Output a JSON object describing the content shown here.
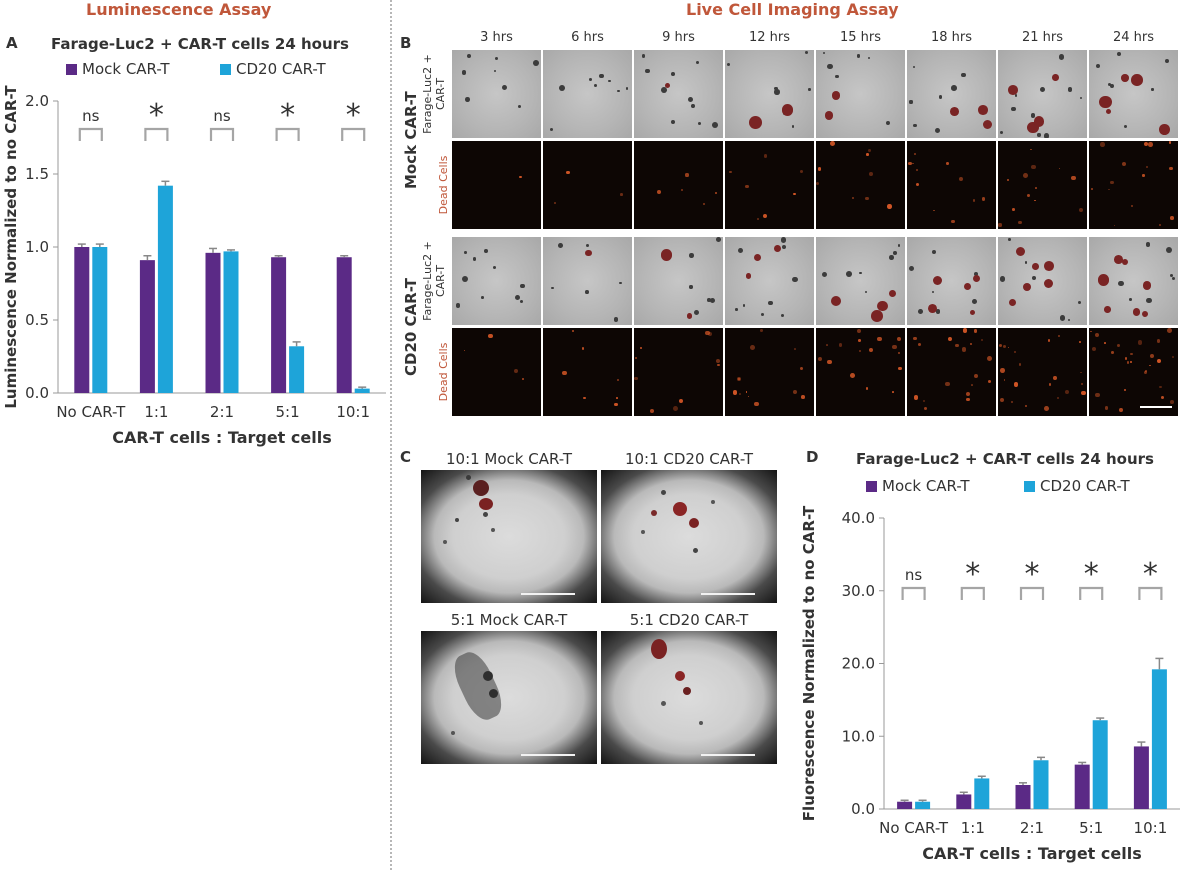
{
  "sections": {
    "left_title": "Luminescence Assay",
    "right_title": "Live Cell Imaging Assay"
  },
  "panel_letters": {
    "a": "A",
    "b": "B",
    "c": "C",
    "d": "D"
  },
  "colors": {
    "mock": "#5b2a86",
    "cd20": "#1ea4d9",
    "accent": "#c0573a",
    "bracket": "#a5a5a5"
  },
  "chart_data": [
    {
      "id": "A",
      "type": "bar",
      "title": "Farage-Luc2 + CAR-T cells 24 hours",
      "xlabel": "CAR-T cells : Target cells",
      "ylabel": "Luminescence Normalized to no CAR-T",
      "categories": [
        "No CAR-T",
        "1:1",
        "2:1",
        "5:1",
        "10:1"
      ],
      "ylim": [
        0,
        2.0
      ],
      "yticks": [
        "0.0",
        "0.5",
        "1.0",
        "1.5",
        "2.0"
      ],
      "legend": "top",
      "series": [
        {
          "name": "Mock CAR-T",
          "values": [
            1.0,
            0.91,
            0.96,
            0.93,
            0.93
          ],
          "errors": [
            0.02,
            0.03,
            0.03,
            0.01,
            0.01
          ]
        },
        {
          "name": "CD20 CAR-T",
          "values": [
            1.0,
            1.42,
            0.97,
            0.32,
            0.03
          ],
          "errors": [
            0.02,
            0.03,
            0.01,
            0.03,
            0.01
          ]
        }
      ],
      "significance": [
        "ns",
        "*",
        "ns",
        "*",
        "*"
      ]
    },
    {
      "id": "D",
      "type": "bar",
      "title": "Farage-Luc2 + CAR-T cells 24 hours",
      "xlabel": "CAR-T cells : Target cells",
      "ylabel": "Fluorescence Normalized to no CAR-T",
      "categories": [
        "No CAR-T",
        "1:1",
        "2:1",
        "5:1",
        "10:1"
      ],
      "ylim": [
        0,
        40
      ],
      "yticks": [
        "0.0",
        "10.0",
        "20.0",
        "30.0",
        "40.0"
      ],
      "legend": "top",
      "series": [
        {
          "name": "Mock CAR-T",
          "values": [
            1.0,
            2.0,
            3.3,
            6.1,
            8.6
          ],
          "errors": [
            0.2,
            0.3,
            0.3,
            0.3,
            0.6
          ]
        },
        {
          "name": "CD20 CAR-T",
          "values": [
            1.0,
            4.2,
            6.7,
            12.2,
            19.2
          ],
          "errors": [
            0.2,
            0.3,
            0.4,
            0.3,
            1.5
          ]
        }
      ],
      "significance": [
        "ns",
        "*",
        "*",
        "*",
        "*"
      ]
    }
  ],
  "imaging_grid": {
    "times": [
      "3 hrs",
      "6 hrs",
      "9 hrs",
      "12 hrs",
      "15 hrs",
      "18 hrs",
      "21 hrs",
      "24 hrs"
    ],
    "groups": [
      {
        "label": "Mock CAR-T",
        "bf_label": "Farage-Luc2 + CAR-T",
        "fl_label": "Dead Cells"
      },
      {
        "label": "CD20 CAR-T",
        "bf_label": "Farage-Luc2 + CAR-T",
        "fl_label": "Dead Cells"
      }
    ]
  },
  "micrographs": [
    {
      "title": "10:1 Mock CAR-T"
    },
    {
      "title": "10:1 CD20 CAR-T"
    },
    {
      "title": "5:1 Mock CAR-T"
    },
    {
      "title": "5:1 CD20 CAR-T"
    }
  ]
}
